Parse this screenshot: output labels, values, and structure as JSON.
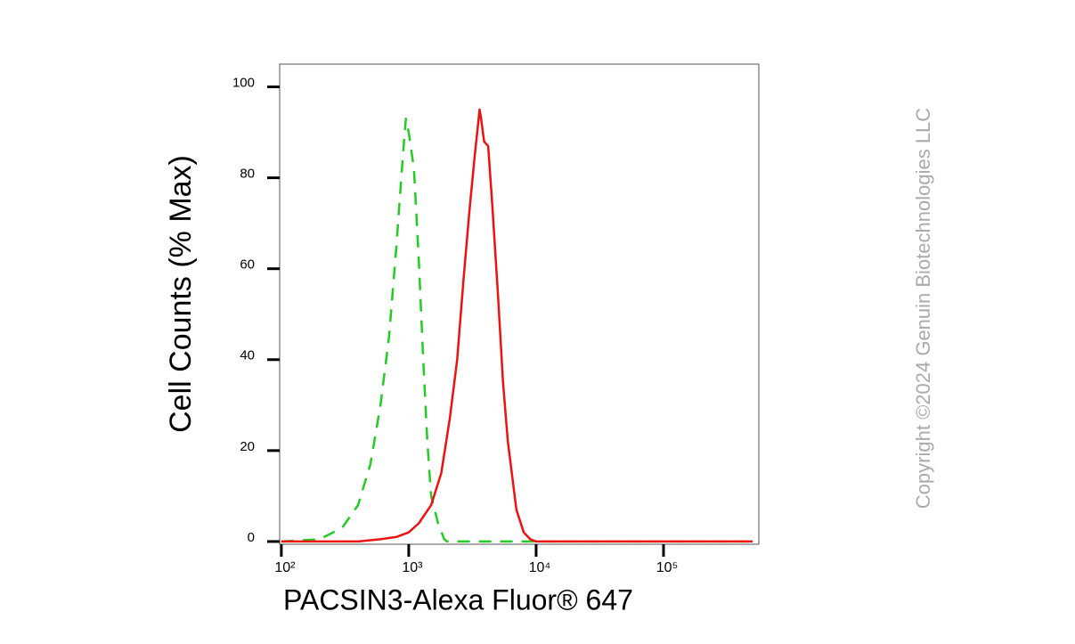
{
  "chart_data": {
    "type": "line",
    "x_label": "PACSIN3-Alexa Fluor® 647",
    "y_label": "Cell Counts (% Max)",
    "watermark": "Copyright ©2024 Genuin Biotechnologies LLC",
    "x_scale": "log",
    "xlim": [
      97,
      560000
    ],
    "ylim": [
      -0.6,
      105
    ],
    "xticks": [
      {
        "value": 100,
        "label": "10²"
      },
      {
        "value": 1000,
        "label": "10³"
      },
      {
        "value": 10000,
        "label": "10⁴"
      },
      {
        "value": 100000,
        "label": "10⁵"
      }
    ],
    "yticks": [
      0,
      20,
      40,
      60,
      80,
      100
    ],
    "series": [
      {
        "color": "#22cc22",
        "dash": true,
        "x": [
          100,
          200,
          300,
          400,
          500,
          600,
          700,
          800,
          900,
          950,
          1000,
          1100,
          1200,
          1300,
          1400,
          1500,
          1700,
          1900,
          2000,
          10000,
          100000,
          500000
        ],
        "values": [
          0,
          0.5,
          3,
          8,
          17,
          30,
          45,
          65,
          85,
          93,
          90,
          82,
          62,
          40,
          22,
          10,
          4,
          0.5,
          0,
          0,
          0,
          0
        ]
      },
      {
        "color": "#ee1111",
        "dash": false,
        "x": [
          100,
          400,
          600,
          800,
          1000,
          1200,
          1500,
          1800,
          2100,
          2400,
          2700,
          3000,
          3300,
          3600,
          3700,
          3900,
          4200,
          4500,
          5000,
          5500,
          6000,
          7000,
          8000,
          9000,
          10000,
          100000,
          500000
        ],
        "values": [
          0,
          0,
          0.5,
          1,
          2,
          4,
          8,
          15,
          27,
          40,
          58,
          73,
          85,
          95,
          93,
          88,
          87,
          75,
          55,
          35,
          22,
          7,
          2,
          0.5,
          0,
          0,
          0
        ]
      }
    ]
  }
}
